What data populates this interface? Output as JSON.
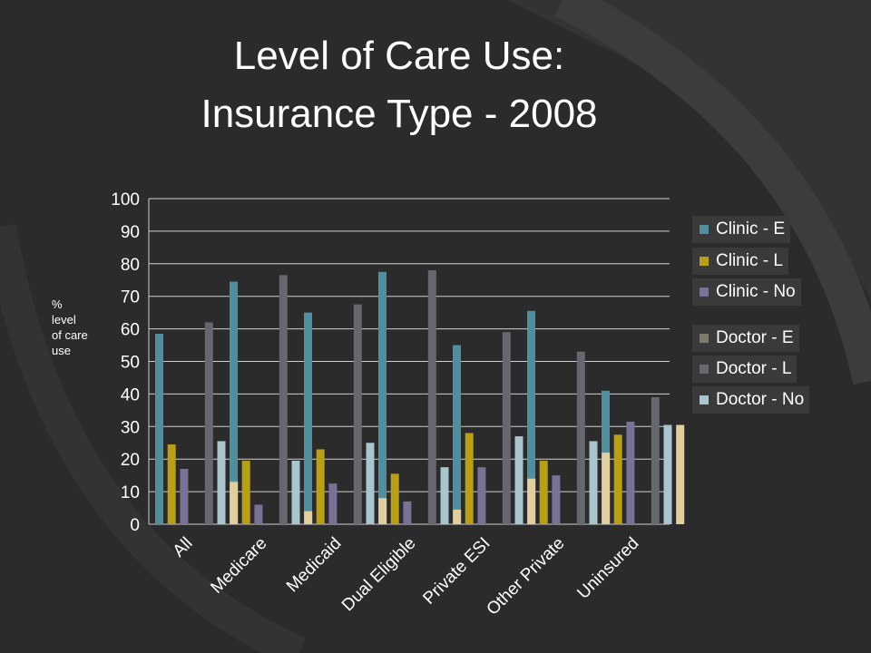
{
  "title_line1": "Level of Care Use:",
  "title_line2": "Insurance Type - 2008",
  "ylabel": "% level of care use",
  "colors": {
    "background": "#2b2b2b",
    "text": "#ffffff",
    "grid": "#cfcfcf"
  },
  "chart_data": {
    "type": "bar",
    "title": "Level of Care Use: Insurance Type - 2008",
    "xlabel": "",
    "ylabel": "% level of care use",
    "ylim": [
      0,
      100
    ],
    "yticks": [
      0,
      10,
      20,
      30,
      40,
      50,
      60,
      70,
      80,
      90,
      100
    ],
    "grid": true,
    "legend_position": "right",
    "categories": [
      "All",
      "Medicare",
      "Medicaid",
      "Dual Eligible",
      "Private ESI",
      "Other Private",
      "Uninsured"
    ],
    "series": [
      {
        "name": "Clinic - E",
        "color": "#4e8fa0",
        "values": [
          58.5,
          74.5,
          65,
          77.5,
          55,
          65.5,
          41
        ]
      },
      {
        "name": "Clinic - L",
        "color": "#b8a012",
        "values": [
          24.5,
          19.5,
          23,
          15.5,
          28,
          19.5,
          27.5
        ]
      },
      {
        "name": "Clinic - No",
        "color": "#7a7196",
        "values": [
          17,
          6,
          12.5,
          7,
          17.5,
          15,
          31.5
        ]
      },
      {
        "name": "Doctor - E",
        "color": "#7d7a68",
        "values": [
          0,
          0,
          0,
          0,
          0,
          0,
          0
        ]
      },
      {
        "name": "Doctor - L",
        "color": "#67676f",
        "values": [
          62,
          76.5,
          67.5,
          78,
          59,
          53,
          39
        ]
      },
      {
        "name": "Doctor - No",
        "color": "#a9c6cf",
        "values": [
          25.5,
          19.5,
          25,
          17.5,
          27,
          25.5,
          30.5
        ]
      },
      {
        "color": "#e3cf9c",
        "values": [
          13,
          4,
          8,
          4.5,
          14,
          22,
          30.5
        ]
      }
    ]
  }
}
